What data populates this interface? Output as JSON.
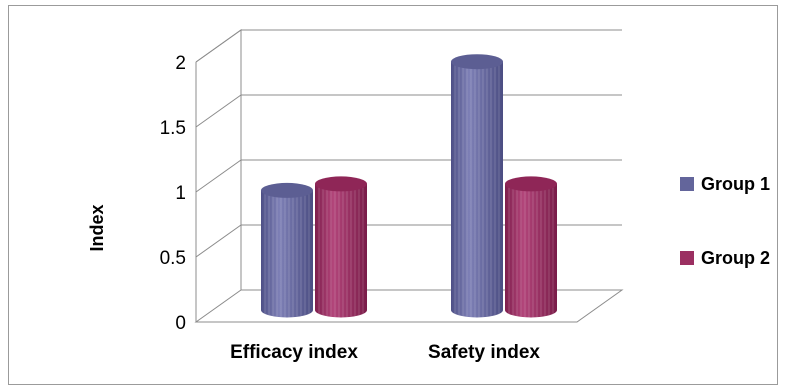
{
  "chart_data": {
    "type": "bar",
    "style": "3d-cylinder",
    "title": "",
    "xlabel": "",
    "ylabel": "Index",
    "ylim": [
      0,
      2
    ],
    "yticks": [
      "0",
      "0.5",
      "1",
      "1.5",
      "2"
    ],
    "categories": [
      "Efficacy index",
      "Safety index"
    ],
    "series": [
      {
        "name": "Group 1",
        "color": "#63659b",
        "values": [
          0.92,
          1.91
        ]
      },
      {
        "name": "Group 2",
        "color": "#9b2f61",
        "values": [
          0.97,
          0.97
        ]
      }
    ],
    "grid": true,
    "legend": "right"
  }
}
